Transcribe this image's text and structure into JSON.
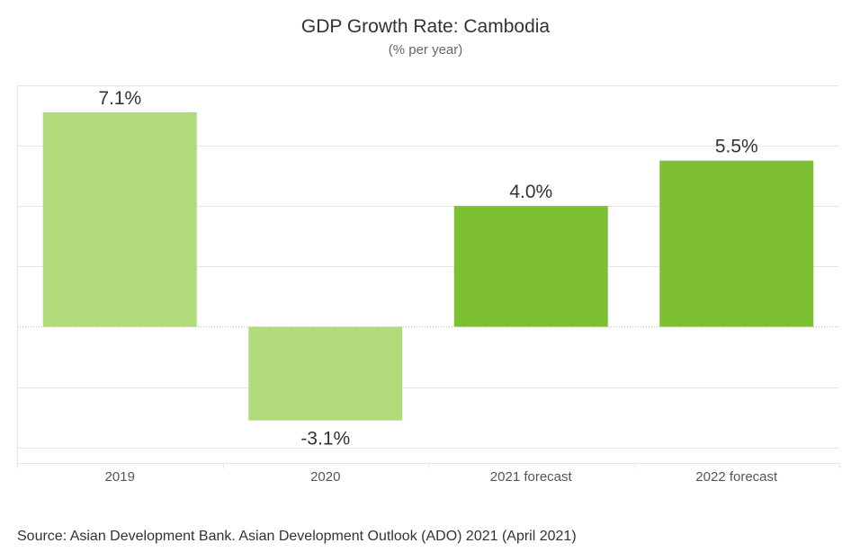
{
  "chart_data": {
    "type": "bar",
    "title": "GDP Growth Rate: Cambodia",
    "subtitle": "(% per year)",
    "categories": [
      "2019",
      "2020",
      "2021 forecast",
      "2022 forecast"
    ],
    "values": [
      7.1,
      -3.1,
      4.0,
      5.5
    ],
    "value_labels": [
      "7.1%",
      "-3.1%",
      "4.0%",
      "5.5%"
    ],
    "bar_kind": [
      "actual",
      "actual",
      "forecast",
      "forecast"
    ],
    "xlabel": "",
    "ylabel": "",
    "ylim": [
      -4,
      8
    ],
    "ytick_step": 2,
    "y_tick_labels_shown": false,
    "grid": true,
    "colors": {
      "actual": "#b1da7b",
      "forecast": "#7dc033",
      "grid": "#e6e6e6",
      "zero_line": "#bbbbbb",
      "label": "#333333",
      "category_label": "#555555"
    }
  },
  "source": "Source: Asian Development Bank. Asian Development Outlook (ADO) 2021 (April 2021)"
}
